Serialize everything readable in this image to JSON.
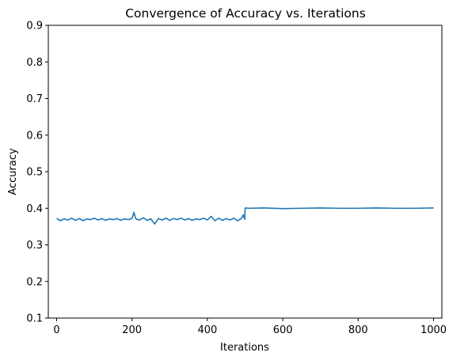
{
  "chart_data": {
    "type": "line",
    "title": "Convergence of Accuracy vs. Iterations",
    "xlabel": "Iterations",
    "ylabel": "Accuracy",
    "xlim": [
      -22,
      1022
    ],
    "ylim": [
      0.1,
      0.9
    ],
    "x_ticks": [
      0,
      200,
      400,
      600,
      800,
      1000
    ],
    "x_tick_labels": [
      "0",
      "200",
      "400",
      "600",
      "800",
      "1000"
    ],
    "y_ticks": [
      0.1,
      0.2,
      0.3,
      0.4,
      0.5,
      0.6,
      0.7,
      0.8,
      0.9
    ],
    "y_tick_labels": [
      "0.1",
      "0.2",
      "0.3",
      "0.4",
      "0.5",
      "0.6",
      "0.7",
      "0.8",
      "0.9"
    ],
    "grid": false,
    "legend": "none",
    "colors": {
      "line": "#1f77b4"
    },
    "series": [
      {
        "x": [
          0,
          10,
          20,
          30,
          40,
          50,
          60,
          70,
          80,
          90,
          100,
          110,
          120,
          130,
          140,
          150,
          160,
          170,
          180,
          190,
          200,
          205,
          210,
          220,
          230,
          240,
          250,
          260,
          270,
          280,
          290,
          300,
          310,
          320,
          330,
          340,
          350,
          360,
          370,
          380,
          390,
          400,
          410,
          420,
          430,
          440,
          450,
          460,
          470,
          480,
          490,
          495,
          499,
          500,
          501,
          510,
          550,
          600,
          650,
          700,
          750,
          800,
          850,
          900,
          950,
          1000
        ],
        "values": [
          0.372,
          0.366,
          0.371,
          0.368,
          0.373,
          0.367,
          0.372,
          0.366,
          0.371,
          0.369,
          0.373,
          0.368,
          0.372,
          0.367,
          0.371,
          0.369,
          0.372,
          0.367,
          0.371,
          0.369,
          0.372,
          0.389,
          0.371,
          0.368,
          0.374,
          0.367,
          0.371,
          0.357,
          0.372,
          0.368,
          0.373,
          0.367,
          0.372,
          0.369,
          0.373,
          0.368,
          0.372,
          0.367,
          0.371,
          0.369,
          0.373,
          0.368,
          0.378,
          0.366,
          0.373,
          0.367,
          0.372,
          0.368,
          0.373,
          0.366,
          0.372,
          0.382,
          0.37,
          0.4,
          0.401,
          0.4,
          0.401,
          0.399,
          0.4,
          0.401,
          0.4,
          0.4,
          0.401,
          0.4,
          0.4,
          0.401
        ]
      }
    ]
  }
}
